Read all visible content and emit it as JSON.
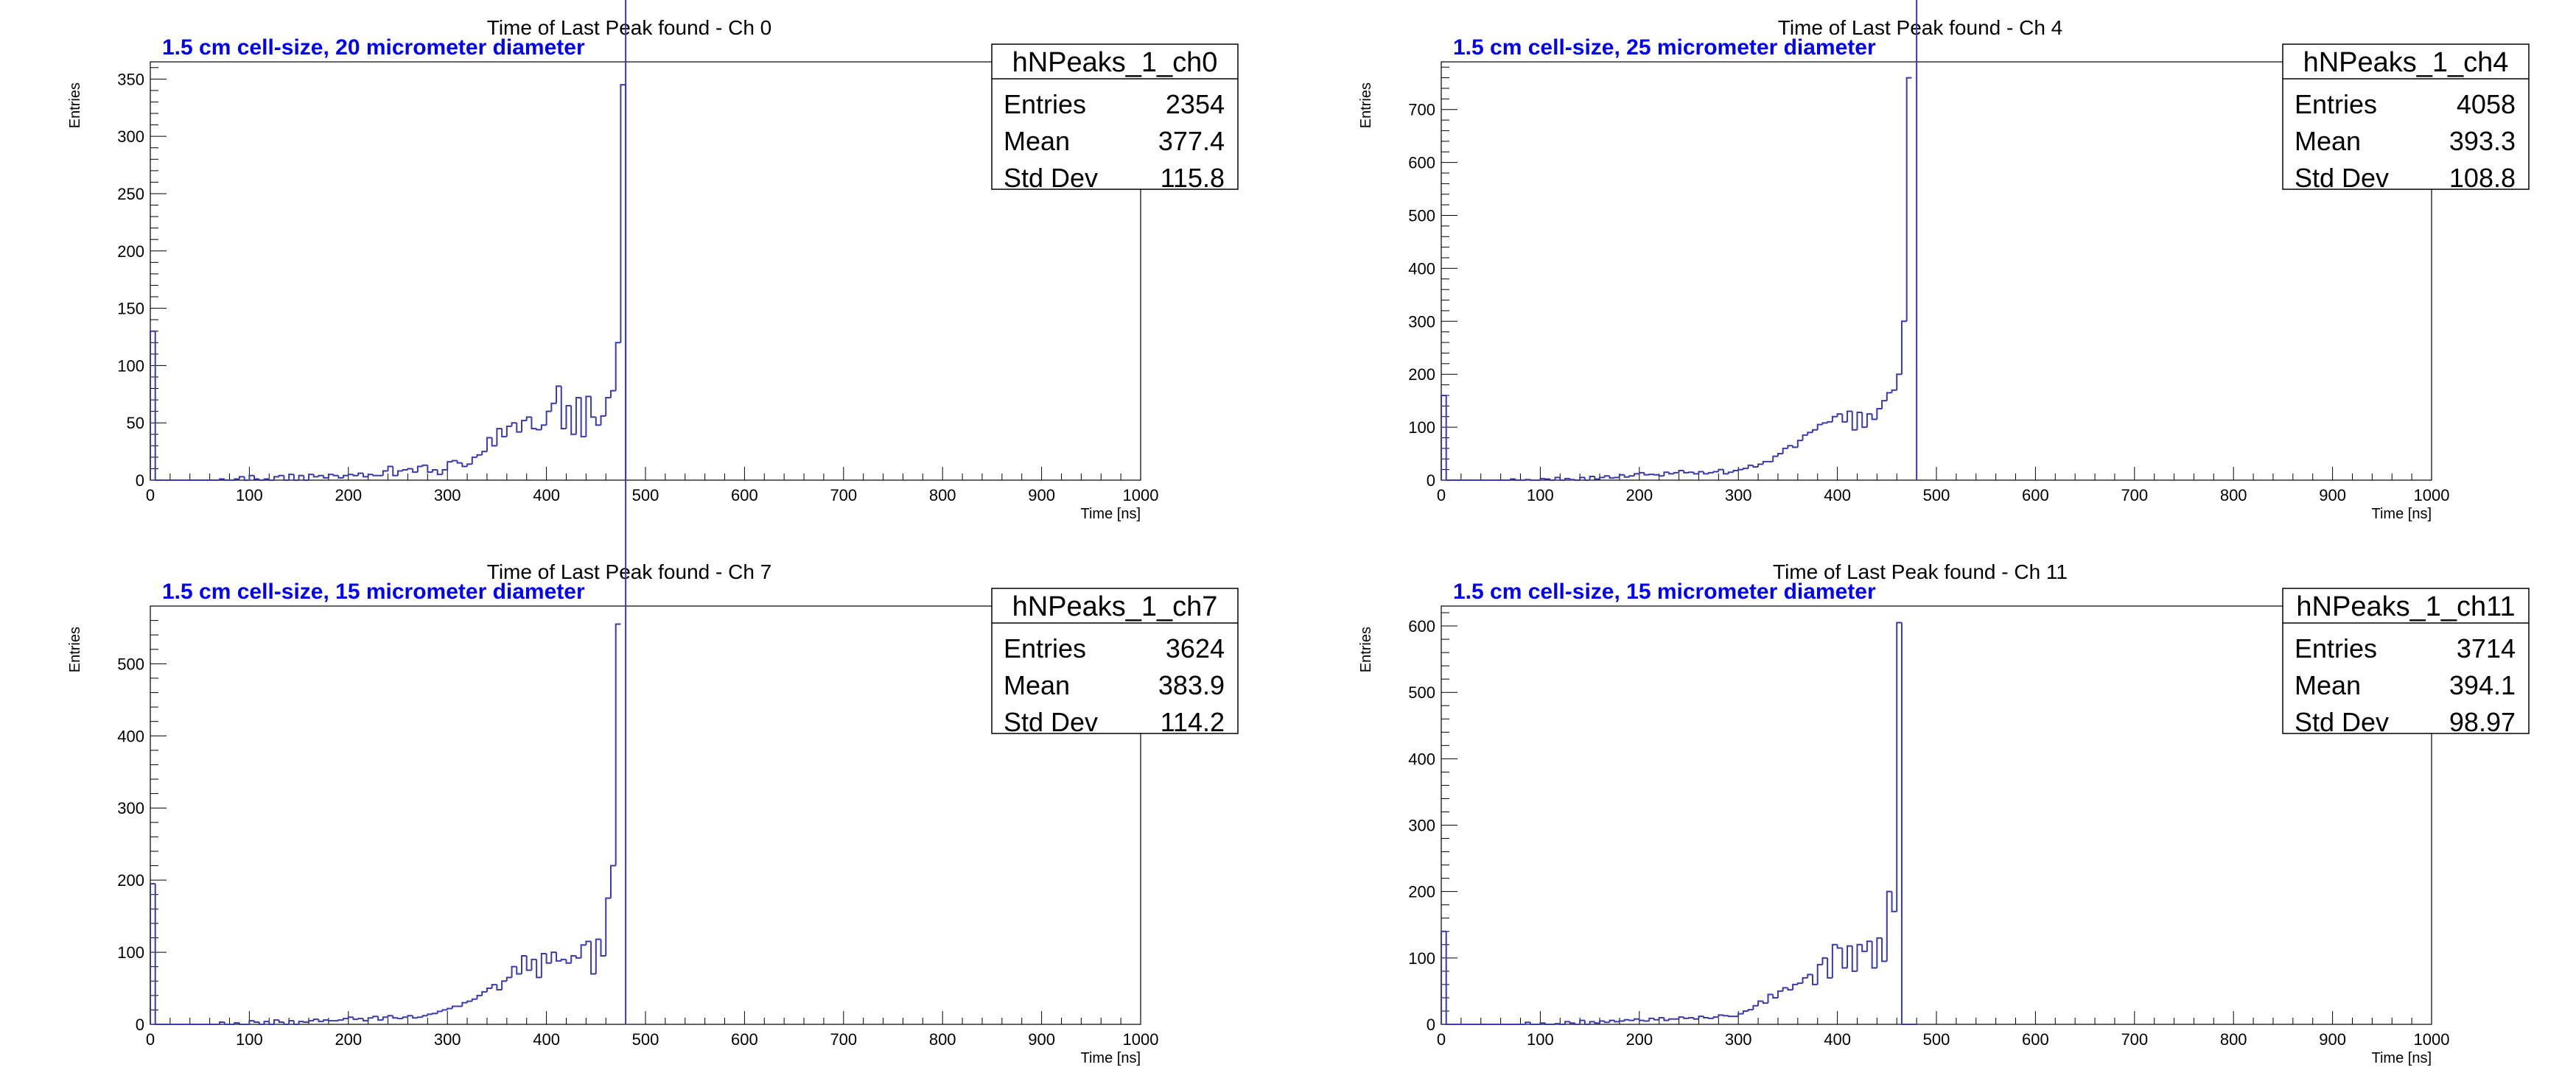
{
  "chart_data": [
    {
      "type": "histogram",
      "title": "Time of Last Peak found - Ch 0",
      "subtitle": "1.5 cm cell-size, 20 micrometer diameter",
      "xlabel": "Time [ns]",
      "ylabel": "Entries",
      "xlim": [
        0,
        1000
      ],
      "ylim": [
        0,
        365
      ],
      "xticks": [
        "0",
        "100",
        "200",
        "300",
        "400",
        "500",
        "600",
        "700",
        "800",
        "900",
        "1000"
      ],
      "yticks": [
        "0",
        "50",
        "100",
        "150",
        "200",
        "250",
        "300",
        "350"
      ],
      "ytick_values": [
        0,
        50,
        100,
        150,
        200,
        250,
        300,
        350
      ],
      "line_color": "#3a3ab0",
      "bin_width": 5,
      "x": [
        0,
        5,
        10,
        15,
        20,
        25,
        30,
        35,
        40,
        45,
        50,
        55,
        60,
        65,
        70,
        75,
        80,
        85,
        90,
        95,
        100,
        105,
        110,
        115,
        120,
        125,
        130,
        135,
        140,
        145,
        150,
        155,
        160,
        165,
        170,
        175,
        180,
        185,
        190,
        195,
        200,
        205,
        210,
        215,
        220,
        225,
        230,
        235,
        240,
        245,
        250,
        255,
        260,
        265,
        270,
        275,
        280,
        285,
        290,
        295,
        300,
        305,
        310,
        315,
        320,
        325,
        330,
        335,
        340,
        345,
        350,
        355,
        360,
        365,
        370,
        375,
        380,
        385,
        390,
        395,
        400,
        405,
        410,
        415,
        420,
        425,
        430,
        435,
        440,
        445,
        450,
        455,
        460,
        465,
        470,
        475
      ],
      "values": [
        130,
        0,
        0,
        0,
        0,
        0,
        0,
        0,
        0,
        0,
        0,
        0,
        0,
        0,
        1,
        0,
        0,
        1,
        3,
        0,
        4,
        1,
        0,
        1,
        0,
        3,
        4,
        0,
        5,
        0,
        4,
        0,
        5,
        3,
        4,
        2,
        5,
        4,
        2,
        4,
        5,
        4,
        6,
        3,
        5,
        4,
        4,
        8,
        12,
        4,
        8,
        9,
        10,
        7,
        12,
        13,
        7,
        9,
        5,
        9,
        16,
        17,
        15,
        12,
        14,
        20,
        22,
        25,
        37,
        30,
        45,
        38,
        47,
        50,
        42,
        52,
        55,
        45,
        44,
        48,
        60,
        67,
        82,
        45,
        65,
        40,
        72,
        38,
        73,
        55,
        48,
        56,
        72,
        78,
        120,
        345
      ],
      "stats": {
        "name": "hNPeaks_1_ch0",
        "entries": "2354",
        "mean": "377.4",
        "std_dev": "115.8"
      }
    },
    {
      "type": "histogram",
      "title": "Time of Last Peak found - Ch 4",
      "subtitle": "1.5 cm cell-size, 25 micrometer diameter",
      "xlabel": "Time [ns]",
      "ylabel": "Entries",
      "xlim": [
        0,
        1000
      ],
      "ylim": [
        0,
        790
      ],
      "xticks": [
        "0",
        "100",
        "200",
        "300",
        "400",
        "500",
        "600",
        "700",
        "800",
        "900",
        "1000"
      ],
      "yticks": [
        "0",
        "100",
        "200",
        "300",
        "400",
        "500",
        "600",
        "700"
      ],
      "ytick_values": [
        0,
        100,
        200,
        300,
        400,
        500,
        600,
        700
      ],
      "line_color": "#3a3ab0",
      "bin_width": 5,
      "x": [
        0,
        5,
        10,
        15,
        20,
        25,
        30,
        35,
        40,
        45,
        50,
        55,
        60,
        65,
        70,
        75,
        80,
        85,
        90,
        95,
        100,
        105,
        110,
        115,
        120,
        125,
        130,
        135,
        140,
        145,
        150,
        155,
        160,
        165,
        170,
        175,
        180,
        185,
        190,
        195,
        200,
        205,
        210,
        215,
        220,
        225,
        230,
        235,
        240,
        245,
        250,
        255,
        260,
        265,
        270,
        275,
        280,
        285,
        290,
        295,
        300,
        305,
        310,
        315,
        320,
        325,
        330,
        335,
        340,
        345,
        350,
        355,
        360,
        365,
        370,
        375,
        380,
        385,
        390,
        395,
        400,
        405,
        410,
        415,
        420,
        425,
        430,
        435,
        440,
        445,
        450,
        455,
        460,
        465,
        470,
        475
      ],
      "values": [
        160,
        0,
        0,
        0,
        0,
        0,
        0,
        0,
        0,
        0,
        0,
        0,
        0,
        0,
        2,
        0,
        0,
        1,
        0,
        0,
        3,
        2,
        0,
        5,
        0,
        3,
        1,
        0,
        5,
        0,
        7,
        2,
        5,
        8,
        4,
        5,
        10,
        6,
        8,
        12,
        14,
        10,
        11,
        10,
        8,
        15,
        12,
        14,
        18,
        14,
        15,
        12,
        16,
        12,
        14,
        16,
        20,
        12,
        15,
        18,
        20,
        22,
        28,
        25,
        30,
        35,
        35,
        45,
        50,
        60,
        65,
        62,
        75,
        85,
        90,
        95,
        105,
        108,
        110,
        120,
        125,
        110,
        130,
        95,
        128,
        100,
        125,
        115,
        135,
        150,
        165,
        170,
        200,
        300,
        760
      ],
      "stats": {
        "name": "hNPeaks_1_ch4",
        "entries": "4058",
        "mean": "393.3",
        "std_dev": "108.8"
      }
    },
    {
      "type": "histogram",
      "title": "Time of Last Peak found - Ch 7",
      "subtitle": "1.5 cm cell-size, 15 micrometer diameter",
      "xlabel": "Time [ns]",
      "ylabel": "Entries",
      "xlim": [
        0,
        1000
      ],
      "ylim": [
        0,
        580
      ],
      "xticks": [
        "0",
        "100",
        "200",
        "300",
        "400",
        "500",
        "600",
        "700",
        "800",
        "900",
        "1000"
      ],
      "yticks": [
        "0",
        "100",
        "200",
        "300",
        "400",
        "500"
      ],
      "ytick_values": [
        0,
        100,
        200,
        300,
        400,
        500
      ],
      "line_color": "#3a3ab0",
      "bin_width": 5,
      "x": [
        0,
        5,
        10,
        15,
        20,
        25,
        30,
        35,
        40,
        45,
        50,
        55,
        60,
        65,
        70,
        75,
        80,
        85,
        90,
        95,
        100,
        105,
        110,
        115,
        120,
        125,
        130,
        135,
        140,
        145,
        150,
        155,
        160,
        165,
        170,
        175,
        180,
        185,
        190,
        195,
        200,
        205,
        210,
        215,
        220,
        225,
        230,
        235,
        240,
        245,
        250,
        255,
        260,
        265,
        270,
        275,
        280,
        285,
        290,
        295,
        300,
        305,
        310,
        315,
        320,
        325,
        330,
        335,
        340,
        345,
        350,
        355,
        360,
        365,
        370,
        375,
        380,
        385,
        390,
        395,
        400,
        405,
        410,
        415,
        420,
        425,
        430,
        435,
        440,
        445,
        450,
        455,
        460,
        465,
        470,
        475
      ],
      "values": [
        195,
        0,
        0,
        0,
        0,
        0,
        0,
        0,
        0,
        0,
        0,
        0,
        0,
        0,
        3,
        0,
        0,
        2,
        0,
        0,
        5,
        3,
        0,
        4,
        0,
        6,
        3,
        0,
        5,
        0,
        4,
        3,
        5,
        7,
        4,
        6,
        5,
        5,
        6,
        8,
        10,
        7,
        8,
        5,
        9,
        11,
        6,
        10,
        12,
        9,
        8,
        10,
        12,
        9,
        10,
        12,
        14,
        15,
        18,
        20,
        22,
        25,
        25,
        30,
        32,
        35,
        40,
        45,
        50,
        55,
        48,
        60,
        65,
        80,
        70,
        95,
        75,
        90,
        65,
        98,
        85,
        100,
        88,
        90,
        85,
        95,
        92,
        110,
        115,
        70,
        118,
        95,
        175,
        220,
        555
      ],
      "stats": {
        "name": "hNPeaks_1_ch7",
        "entries": "3624",
        "mean": "383.9",
        "std_dev": "114.2"
      }
    },
    {
      "type": "histogram",
      "title": "Time of Last Peak found - Ch 11",
      "subtitle": "1.5 cm cell-size, 15 micrometer diameter",
      "xlabel": "Time [ns]",
      "ylabel": "Entries",
      "xlim": [
        0,
        1000
      ],
      "ylim": [
        0,
        630
      ],
      "xticks": [
        "0",
        "100",
        "200",
        "300",
        "400",
        "500",
        "600",
        "700",
        "800",
        "900",
        "1000"
      ],
      "yticks": [
        "0",
        "100",
        "200",
        "300",
        "400",
        "500",
        "600"
      ],
      "ytick_values": [
        0,
        100,
        200,
        300,
        400,
        500,
        600
      ],
      "line_color": "#3a3ab0",
      "bin_width": 5,
      "x": [
        0,
        5,
        10,
        15,
        20,
        25,
        30,
        35,
        40,
        45,
        50,
        55,
        60,
        65,
        70,
        75,
        80,
        85,
        90,
        95,
        100,
        105,
        110,
        115,
        120,
        125,
        130,
        135,
        140,
        145,
        150,
        155,
        160,
        165,
        170,
        175,
        180,
        185,
        190,
        195,
        200,
        205,
        210,
        215,
        220,
        225,
        230,
        235,
        240,
        245,
        250,
        255,
        260,
        265,
        270,
        275,
        280,
        285,
        290,
        295,
        300,
        305,
        310,
        315,
        320,
        325,
        330,
        335,
        340,
        345,
        350,
        355,
        360,
        365,
        370,
        375,
        380,
        385,
        390,
        395,
        400,
        405,
        410,
        415,
        420,
        425,
        430,
        435,
        440,
        445,
        450,
        455,
        460,
        465,
        470,
        475
      ],
      "values": [
        140,
        0,
        0,
        0,
        0,
        0,
        0,
        0,
        0,
        0,
        0,
        0,
        0,
        0,
        0,
        0,
        0,
        3,
        0,
        0,
        2,
        0,
        0,
        1,
        0,
        4,
        2,
        0,
        6,
        0,
        4,
        2,
        5,
        3,
        6,
        4,
        5,
        7,
        6,
        8,
        6,
        5,
        9,
        7,
        10,
        6,
        8,
        8,
        11,
        9,
        10,
        8,
        12,
        10,
        9,
        11,
        14,
        13,
        12,
        12,
        16,
        20,
        22,
        28,
        35,
        32,
        45,
        40,
        50,
        55,
        52,
        60,
        62,
        70,
        75,
        60,
        90,
        100,
        70,
        120,
        115,
        85,
        118,
        80,
        120,
        110,
        125,
        85,
        130,
        95,
        200,
        170,
        605,
        0,
        0,
        0
      ],
      "stats": {
        "name": "hNPeaks_1_ch11",
        "entries": "3714",
        "mean": "394.1",
        "std_dev": "98.97"
      }
    }
  ]
}
